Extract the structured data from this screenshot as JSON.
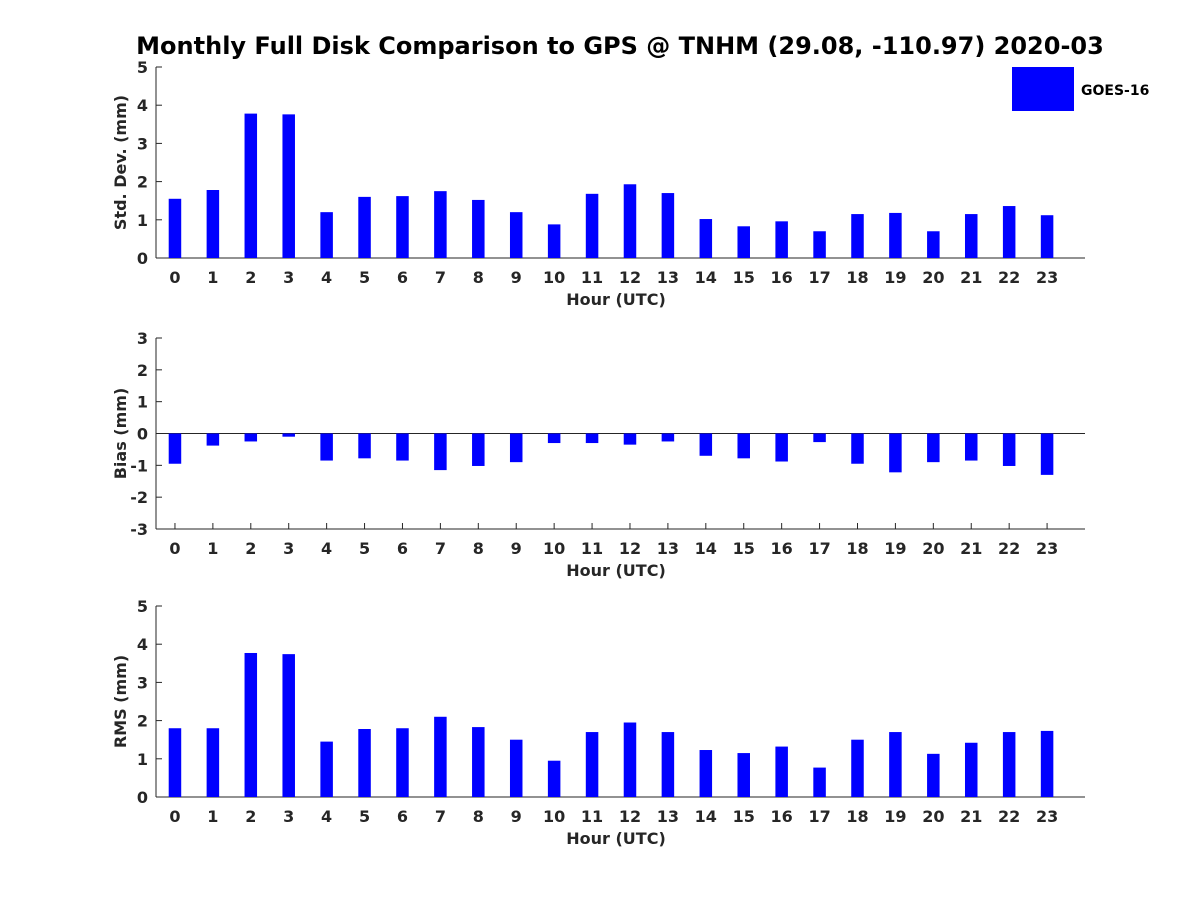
{
  "figure": {
    "title": "Monthly Full Disk Comparison to GPS @ TNHM (29.08, -110.97) 2020-03",
    "legend": {
      "label": "GOES-16",
      "color": "#0000ff",
      "placement": "top-right"
    }
  },
  "chart_data": [
    {
      "type": "bar",
      "name": "std-dev",
      "ylabel": "Std. Dev. (mm)",
      "xlabel": "Hour (UTC)",
      "ylim": [
        0,
        5
      ],
      "yticks": [
        0,
        1,
        2,
        3,
        4,
        5
      ],
      "categories": [
        "0",
        "1",
        "2",
        "3",
        "4",
        "5",
        "6",
        "7",
        "8",
        "9",
        "10",
        "11",
        "12",
        "13",
        "14",
        "15",
        "16",
        "17",
        "18",
        "19",
        "20",
        "21",
        "22",
        "23"
      ],
      "series": [
        {
          "name": "GOES-16",
          "color": "#0000ff",
          "values": [
            1.55,
            1.78,
            3.78,
            3.76,
            1.2,
            1.6,
            1.62,
            1.75,
            1.52,
            1.2,
            0.88,
            1.68,
            1.93,
            1.7,
            1.02,
            0.83,
            0.96,
            0.7,
            1.15,
            1.18,
            0.7,
            1.15,
            1.36,
            1.12
          ]
        }
      ]
    },
    {
      "type": "bar",
      "name": "bias",
      "ylabel": "Bias (mm)",
      "xlabel": "Hour (UTC)",
      "ylim": [
        -3,
        3
      ],
      "yticks": [
        -3,
        -2,
        -1,
        0,
        1,
        2,
        3
      ],
      "zero_line": true,
      "categories": [
        "0",
        "1",
        "2",
        "3",
        "4",
        "5",
        "6",
        "7",
        "8",
        "9",
        "10",
        "11",
        "12",
        "13",
        "14",
        "15",
        "16",
        "17",
        "18",
        "19",
        "20",
        "21",
        "22",
        "23"
      ],
      "series": [
        {
          "name": "GOES-16",
          "color": "#0000ff",
          "values": [
            -0.95,
            -0.38,
            -0.25,
            -0.1,
            -0.85,
            -0.78,
            -0.85,
            -1.15,
            -1.02,
            -0.9,
            -0.3,
            -0.3,
            -0.35,
            -0.25,
            -0.7,
            -0.78,
            -0.88,
            -0.27,
            -0.95,
            -1.22,
            -0.9,
            -0.85,
            -1.02,
            -1.3
          ]
        }
      ]
    },
    {
      "type": "bar",
      "name": "rms",
      "ylabel": "RMS (mm)",
      "xlabel": "Hour (UTC)",
      "ylim": [
        0,
        5
      ],
      "yticks": [
        0,
        1,
        2,
        3,
        4,
        5
      ],
      "categories": [
        "0",
        "1",
        "2",
        "3",
        "4",
        "5",
        "6",
        "7",
        "8",
        "9",
        "10",
        "11",
        "12",
        "13",
        "14",
        "15",
        "16",
        "17",
        "18",
        "19",
        "20",
        "21",
        "22",
        "23"
      ],
      "series": [
        {
          "name": "GOES-16",
          "color": "#0000ff",
          "values": [
            1.8,
            1.8,
            3.77,
            3.74,
            1.45,
            1.78,
            1.8,
            2.1,
            1.83,
            1.5,
            0.95,
            1.7,
            1.95,
            1.7,
            1.23,
            1.15,
            1.32,
            0.77,
            1.5,
            1.7,
            1.13,
            1.42,
            1.7,
            1.73
          ]
        }
      ]
    }
  ]
}
